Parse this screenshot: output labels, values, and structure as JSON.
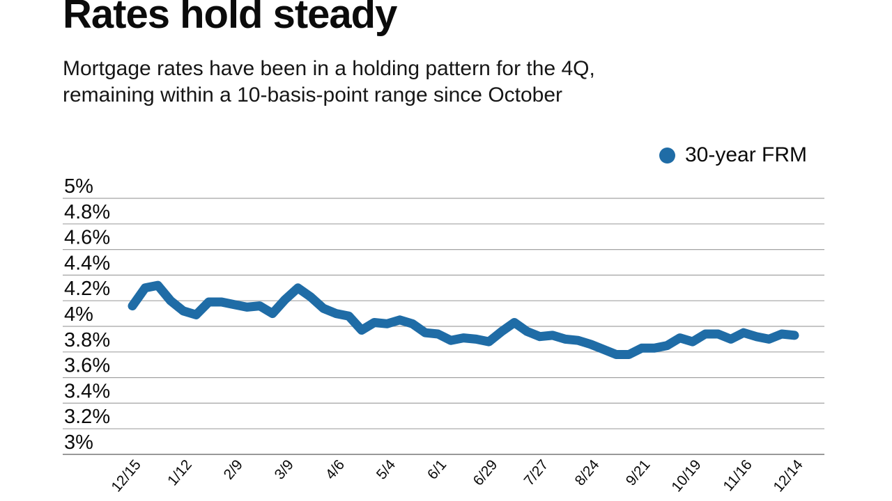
{
  "header": {
    "title": "Rates hold steady",
    "subtitle_lines": [
      "Mortgage rates have been in a holding pattern for the 4Q,",
      "remaining within a 10-basis-point range since October"
    ]
  },
  "legend": {
    "label": "30-year FRM",
    "marker_color": "#1f6ca6"
  },
  "colors": {
    "line": "#1f6ca6",
    "gridline": "#a3a3a3",
    "axis_line": "#8a8a8a",
    "text": "#0b0b0b"
  },
  "chart_data": {
    "type": "line",
    "title": "Rates hold steady",
    "subtitle": "Mortgage rates have been in a holding pattern for the 4Q, remaining within a 10-basis-point range since October",
    "xlabel": "",
    "ylabel": "",
    "ylim": [
      3,
      5
    ],
    "grid": true,
    "legend_position": "top-right",
    "line_color": "#1f6ca6",
    "line_width": 13,
    "ytick_values": [
      5,
      4.8,
      4.6,
      4.4,
      4.2,
      4,
      3.8,
      3.6,
      3.4,
      3.2,
      3
    ],
    "ytick_labels": [
      "5%",
      "4.8%",
      "4.6%",
      "4.4%",
      "4.2%",
      "4%",
      "3.8%",
      "3.6%",
      "3.4%",
      "3.2%",
      "3%"
    ],
    "xtick_labels": [
      "12/15",
      "1/12",
      "2/9",
      "3/9",
      "4/6",
      "5/4",
      "6/1",
      "6/29",
      "7/27",
      "8/24",
      "9/21",
      "10/19",
      "11/16",
      "12/14"
    ],
    "points_per_tick": 4,
    "series": [
      {
        "name": "30-year FRM",
        "unit": "%",
        "values": [
          4.16,
          4.3,
          4.32,
          4.2,
          4.12,
          4.09,
          4.19,
          4.19,
          4.17,
          4.15,
          4.16,
          4.1,
          4.21,
          4.3,
          4.23,
          4.14,
          4.1,
          4.08,
          3.97,
          4.03,
          4.02,
          4.05,
          4.02,
          3.95,
          3.94,
          3.89,
          3.91,
          3.9,
          3.88,
          3.96,
          4.03,
          3.96,
          3.92,
          3.93,
          3.9,
          3.89,
          3.86,
          3.82,
          3.78,
          3.78,
          3.83,
          3.83,
          3.85,
          3.91,
          3.88,
          3.94,
          3.94,
          3.9,
          3.95,
          3.92,
          3.9,
          3.94,
          3.93
        ]
      }
    ]
  }
}
